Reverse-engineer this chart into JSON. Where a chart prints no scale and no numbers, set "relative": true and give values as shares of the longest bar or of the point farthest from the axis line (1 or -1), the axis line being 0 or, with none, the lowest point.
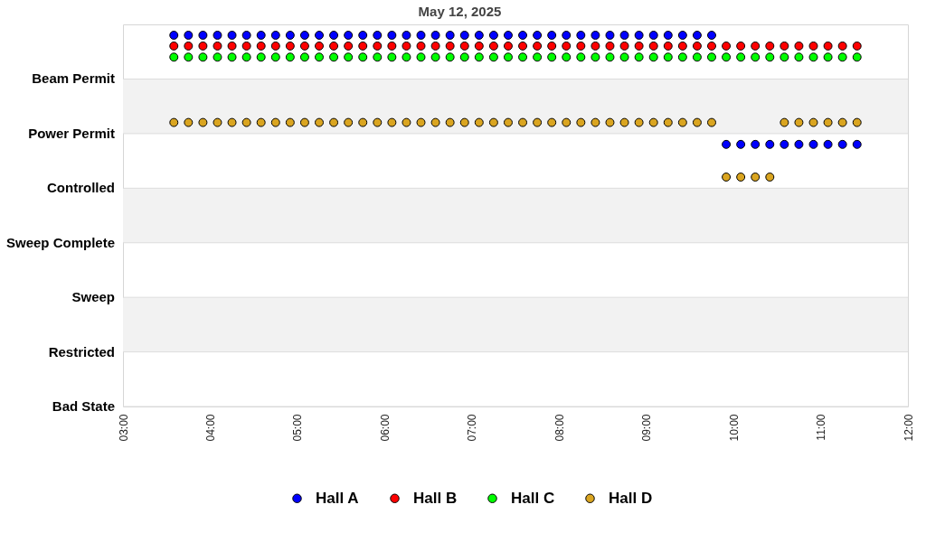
{
  "chart_data": {
    "type": "scatter",
    "title": "May 12, 2025",
    "relative": true,
    "x": [
      "2025-05-12T03:35",
      "2025-05-12T03:45",
      "2025-05-12T03:55",
      "2025-05-12T04:05",
      "2025-05-12T04:15",
      "2025-05-12T04:25",
      "2025-05-12T04:35",
      "2025-05-12T04:45",
      "2025-05-12T04:55",
      "2025-05-12T05:05",
      "2025-05-12T05:15",
      "2025-05-12T05:25",
      "2025-05-12T05:35",
      "2025-05-12T05:45",
      "2025-05-12T05:55",
      "2025-05-12T06:05",
      "2025-05-12T06:15",
      "2025-05-12T06:25",
      "2025-05-12T06:35",
      "2025-05-12T06:45",
      "2025-05-12T06:55",
      "2025-05-12T07:05",
      "2025-05-12T07:15",
      "2025-05-12T07:25",
      "2025-05-12T07:35",
      "2025-05-12T07:45",
      "2025-05-12T07:55",
      "2025-05-12T08:05",
      "2025-05-12T08:15",
      "2025-05-12T08:25",
      "2025-05-12T08:35",
      "2025-05-12T08:45",
      "2025-05-12T08:55",
      "2025-05-12T09:05",
      "2025-05-12T09:15",
      "2025-05-12T09:25",
      "2025-05-12T09:35",
      "2025-05-12T09:45",
      "2025-05-12T09:55",
      "2025-05-12T10:05",
      "2025-05-12T10:15",
      "2025-05-12T10:25",
      "2025-05-12T10:35",
      "2025-05-12T10:45",
      "2025-05-12T10:55",
      "2025-05-12T11:05",
      "2025-05-12T11:15",
      "2025-05-12T11:25"
    ],
    "series": [
      {
        "name": "Hall A",
        "color": "#0000ff",
        "values": [
          1,
          1,
          1,
          1,
          1,
          1,
          1,
          1,
          1,
          1,
          1,
          1,
          1,
          1,
          1,
          1,
          1,
          1,
          1,
          1,
          1,
          1,
          1,
          1,
          1,
          1,
          1,
          1,
          1,
          1,
          1,
          1,
          1,
          1,
          1,
          1,
          1,
          1,
          0.706,
          0.706,
          0.706,
          0.706,
          0.706,
          0.706,
          0.706,
          0.706,
          0.706,
          0.706
        ]
      },
      {
        "name": "Hall B",
        "color": "#ff0000",
        "values": [
          0.971,
          0.971,
          0.971,
          0.971,
          0.971,
          0.971,
          0.971,
          0.971,
          0.971,
          0.971,
          0.971,
          0.971,
          0.971,
          0.971,
          0.971,
          0.971,
          0.971,
          0.971,
          0.971,
          0.971,
          0.971,
          0.971,
          0.971,
          0.971,
          0.971,
          0.971,
          0.971,
          0.971,
          0.971,
          0.971,
          0.971,
          0.971,
          0.971,
          0.971,
          0.971,
          0.971,
          0.971,
          0.971,
          0.971,
          0.971,
          0.971,
          0.971,
          0.971,
          0.971,
          0.971,
          0.971,
          0.971,
          0.971
        ]
      },
      {
        "name": "Hall C",
        "color": "#00ff00",
        "values": [
          0.941,
          0.941,
          0.941,
          0.941,
          0.941,
          0.941,
          0.941,
          0.941,
          0.941,
          0.941,
          0.941,
          0.941,
          0.941,
          0.941,
          0.941,
          0.941,
          0.941,
          0.941,
          0.941,
          0.941,
          0.941,
          0.941,
          0.941,
          0.941,
          0.941,
          0.941,
          0.941,
          0.941,
          0.941,
          0.941,
          0.941,
          0.941,
          0.941,
          0.941,
          0.941,
          0.941,
          0.941,
          0.941,
          0.941,
          0.941,
          0.941,
          0.941,
          0.941,
          0.941,
          0.941,
          0.941,
          0.941,
          0.941
        ]
      },
      {
        "name": "Hall D",
        "color": "#daa520",
        "values": [
          0.765,
          0.765,
          0.765,
          0.765,
          0.765,
          0.765,
          0.765,
          0.765,
          0.765,
          0.765,
          0.765,
          0.765,
          0.765,
          0.765,
          0.765,
          0.765,
          0.765,
          0.765,
          0.765,
          0.765,
          0.765,
          0.765,
          0.765,
          0.765,
          0.765,
          0.765,
          0.765,
          0.765,
          0.765,
          0.765,
          0.765,
          0.765,
          0.765,
          0.765,
          0.765,
          0.765,
          0.765,
          0.765,
          0.618,
          0.618,
          0.618,
          0.618,
          0.765,
          0.765,
          0.765,
          0.765,
          0.765,
          0.765
        ]
      }
    ],
    "xlim": [
      "2025-05-12T03:00",
      "2025-05-12T12:00"
    ],
    "xticks": [
      {
        "value": "2025-05-12T03:00",
        "label": "03:00"
      },
      {
        "value": "2025-05-12T04:00",
        "label": "04:00"
      },
      {
        "value": "2025-05-12T05:00",
        "label": "05:00"
      },
      {
        "value": "2025-05-12T06:00",
        "label": "06:00"
      },
      {
        "value": "2025-05-12T07:00",
        "label": "07:00"
      },
      {
        "value": "2025-05-12T08:00",
        "label": "08:00"
      },
      {
        "value": "2025-05-12T09:00",
        "label": "09:00"
      },
      {
        "value": "2025-05-12T10:00",
        "label": "10:00"
      },
      {
        "value": "2025-05-12T11:00",
        "label": "11:00"
      },
      {
        "value": "2025-05-12T12:00",
        "label": "12:00"
      }
    ],
    "ref_lines": [
      {
        "axis": "y",
        "value": 0,
        "label": "Bad State",
        "color": "#dcdcdc"
      },
      {
        "axis": "y",
        "value": 0.147,
        "label": "Restricted",
        "color": "#dcdcdc"
      },
      {
        "axis": "y",
        "value": 0.294,
        "label": "Sweep",
        "color": "#dcdcdc"
      },
      {
        "axis": "y",
        "value": 0.441,
        "label": "Sweep Complete",
        "color": "#dcdcdc"
      },
      {
        "axis": "y",
        "value": 0.588,
        "label": "Controlled",
        "color": "#dcdcdc"
      },
      {
        "axis": "y",
        "value": 0.735,
        "label": "Power Permit",
        "color": "#dcdcdc"
      },
      {
        "axis": "y",
        "value": 0.882,
        "label": "Beam Permit",
        "color": "#dcdcdc"
      }
    ],
    "bands": [
      {
        "axis": "y",
        "from": 0.735,
        "to": 0.882,
        "color": "#f2f2f2"
      },
      {
        "axis": "y",
        "from": 0.441,
        "to": 0.588,
        "color": "#f2f2f2"
      },
      {
        "axis": "y",
        "from": 0.147,
        "to": 0.294,
        "color": "#f2f2f2"
      }
    ],
    "legend": "bottom",
    "marker": "circle"
  }
}
